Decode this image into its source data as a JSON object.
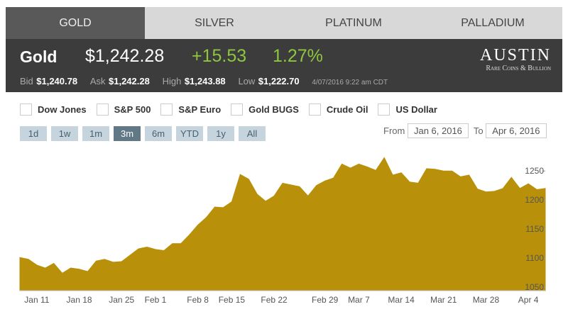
{
  "tabs": [
    "GOLD",
    "SILVER",
    "PLATINUM",
    "PALLADIUM"
  ],
  "quote": {
    "name": "Gold",
    "price": "$1,242.28",
    "change": "+15.53",
    "change_pct": "1.27%",
    "bid_label": "Bid",
    "bid": "$1,240.78",
    "ask_label": "Ask",
    "ask": "$1,242.28",
    "high_label": "High",
    "high": "$1,243.88",
    "low_label": "Low",
    "low": "$1,222.70",
    "timestamp": "4/07/2016 9:22 am CDT"
  },
  "logo": {
    "title": "AUSTIN",
    "subtitle": "Rare Coins & Bullion"
  },
  "compare": [
    "Dow Jones",
    "S&P 500",
    "S&P Euro",
    "Gold BUGS",
    "Crude Oil",
    "US Dollar"
  ],
  "ranges": [
    "1d",
    "1w",
    "1m",
    "3m",
    "6m",
    "YTD",
    "1y",
    "All"
  ],
  "active_range": "3m",
  "from_label": "From",
  "from_date": "Jan 6, 2016",
  "to_label": "To",
  "to_date": "Apr 6, 2016",
  "chart_data": {
    "type": "area",
    "color": "#b8900a",
    "categories": [
      null,
      null,
      "Jan 11",
      null,
      null,
      null,
      null,
      "Jan 18",
      null,
      null,
      null,
      null,
      "Jan 25",
      null,
      null,
      null,
      "Feb 1",
      null,
      null,
      null,
      null,
      "Feb 8",
      null,
      null,
      null,
      "Feb 15",
      null,
      null,
      null,
      null,
      "Feb 22",
      null,
      null,
      null,
      null,
      null,
      "Feb 29",
      null,
      null,
      null,
      "Mar 7",
      null,
      null,
      null,
      null,
      "Mar 14",
      null,
      null,
      null,
      null,
      "Mar 21",
      null,
      null,
      null,
      null,
      "Mar 28",
      null,
      null,
      null,
      null,
      "Apr 4",
      null,
      null
    ],
    "values": [
      1101,
      1098,
      1088,
      1083,
      1091,
      1074,
      1083,
      1081,
      1077,
      1095,
      1098,
      1093,
      1094,
      1105,
      1116,
      1119,
      1115,
      1113,
      1125,
      1125,
      1140,
      1157,
      1170,
      1188,
      1187,
      1197,
      1244,
      1236,
      1210,
      1198,
      1207,
      1229,
      1226,
      1223,
      1207,
      1225,
      1233,
      1238,
      1262,
      1255,
      1262,
      1257,
      1251,
      1273,
      1243,
      1247,
      1231,
      1229,
      1254,
      1253,
      1250,
      1250,
      1240,
      1243,
      1219,
      1214,
      1215,
      1220,
      1239,
      1220,
      1228,
      1218,
      1220
    ],
    "ylim": [
      1044,
      1282
    ],
    "yticks": [
      1050,
      1100,
      1150,
      1200,
      1250
    ]
  }
}
